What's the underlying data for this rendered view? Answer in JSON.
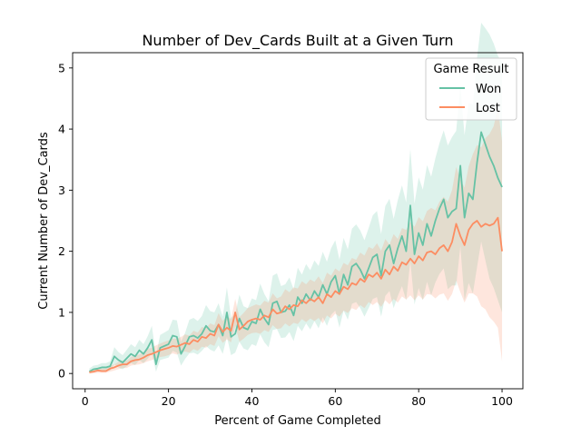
{
  "chart_data": {
    "type": "line",
    "title": "Number of Dev_Cards Built at a Given Turn",
    "xlabel": "Percent of Game Completed",
    "ylabel": "Current Number of Dev_Cards",
    "xlim": [
      -3,
      105
    ],
    "ylim": [
      -0.25,
      5.25
    ],
    "xticks": [
      0,
      20,
      40,
      60,
      80,
      100
    ],
    "yticks": [
      0,
      1,
      2,
      3,
      4,
      5
    ],
    "legend": {
      "title": "Game Result",
      "position": "top-right"
    },
    "x": [
      1,
      2,
      3,
      4,
      5,
      6,
      7,
      8,
      9,
      10,
      11,
      12,
      13,
      14,
      15,
      16,
      17,
      18,
      19,
      20,
      21,
      22,
      23,
      24,
      25,
      26,
      27,
      28,
      29,
      30,
      31,
      32,
      33,
      34,
      35,
      36,
      37,
      38,
      39,
      40,
      41,
      42,
      43,
      44,
      45,
      46,
      47,
      48,
      49,
      50,
      51,
      52,
      53,
      54,
      55,
      56,
      57,
      58,
      59,
      60,
      61,
      62,
      63,
      64,
      65,
      66,
      67,
      68,
      69,
      70,
      71,
      72,
      73,
      74,
      75,
      76,
      77,
      78,
      79,
      80,
      81,
      82,
      83,
      84,
      85,
      86,
      87,
      88,
      89,
      90,
      91,
      92,
      93,
      94,
      95,
      96,
      97,
      98,
      99,
      100
    ],
    "series": [
      {
        "name": "Won",
        "color": "#66c2a5",
        "values": [
          0.03,
          0.07,
          0.08,
          0.1,
          0.1,
          0.12,
          0.28,
          0.22,
          0.18,
          0.25,
          0.32,
          0.28,
          0.38,
          0.32,
          0.42,
          0.55,
          0.15,
          0.42,
          0.45,
          0.48,
          0.62,
          0.6,
          0.32,
          0.45,
          0.6,
          0.62,
          0.58,
          0.65,
          0.78,
          0.7,
          0.68,
          0.8,
          0.62,
          1.0,
          0.6,
          0.65,
          0.9,
          0.75,
          0.72,
          0.85,
          0.82,
          1.05,
          0.9,
          0.8,
          1.15,
          1.18,
          1.0,
          1.02,
          1.12,
          0.95,
          1.25,
          1.15,
          1.3,
          1.2,
          1.35,
          1.25,
          1.45,
          1.3,
          1.5,
          1.6,
          1.3,
          1.62,
          1.45,
          1.75,
          1.8,
          1.7,
          1.55,
          1.72,
          1.9,
          1.95,
          1.6,
          2.0,
          2.1,
          1.8,
          2.05,
          2.25,
          2.0,
          2.75,
          1.95,
          2.3,
          2.1,
          2.45,
          2.25,
          2.5,
          2.7,
          2.85,
          2.55,
          2.65,
          2.7,
          3.4,
          2.55,
          2.95,
          2.85,
          3.45,
          3.95,
          3.75,
          3.55,
          3.4,
          3.2,
          3.05
        ],
        "ci_lower": [
          0.0,
          0.02,
          0.03,
          0.04,
          0.04,
          0.05,
          0.15,
          0.1,
          0.07,
          0.12,
          0.17,
          0.14,
          0.22,
          0.17,
          0.24,
          0.33,
          0.03,
          0.22,
          0.24,
          0.26,
          0.37,
          0.34,
          0.13,
          0.24,
          0.33,
          0.34,
          0.31,
          0.37,
          0.45,
          0.39,
          0.36,
          0.46,
          0.32,
          0.6,
          0.3,
          0.34,
          0.52,
          0.41,
          0.38,
          0.48,
          0.45,
          0.64,
          0.51,
          0.43,
          0.71,
          0.73,
          0.58,
          0.59,
          0.68,
          0.53,
          0.78,
          0.69,
          0.82,
          0.72,
          0.86,
          0.74,
          0.92,
          0.78,
          0.96,
          1.03,
          0.75,
          1.03,
          0.88,
          1.14,
          1.17,
          1.07,
          0.93,
          1.07,
          1.22,
          1.25,
          0.93,
          1.27,
          1.35,
          1.07,
          1.27,
          1.43,
          1.2,
          1.84,
          1.13,
          1.4,
          1.2,
          1.5,
          1.28,
          1.49,
          1.63,
          1.72,
          1.38,
          1.44,
          1.44,
          2.08,
          1.2,
          1.48,
          1.31,
          1.74,
          2.16,
          1.85,
          1.55,
          1.4,
          1.2,
          1.0
        ],
        "ci_upper": [
          0.08,
          0.13,
          0.14,
          0.17,
          0.17,
          0.2,
          0.43,
          0.35,
          0.3,
          0.39,
          0.48,
          0.43,
          0.55,
          0.48,
          0.61,
          0.78,
          0.3,
          0.63,
          0.67,
          0.71,
          0.88,
          0.87,
          0.52,
          0.67,
          0.88,
          0.91,
          0.86,
          0.94,
          1.12,
          1.02,
          1.0,
          1.15,
          0.93,
          1.41,
          0.91,
          0.97,
          1.29,
          1.1,
          1.07,
          1.23,
          1.2,
          1.47,
          1.3,
          1.18,
          1.6,
          1.64,
          1.43,
          1.46,
          1.57,
          1.38,
          1.73,
          1.62,
          1.79,
          1.69,
          1.85,
          1.76,
          1.99,
          1.83,
          2.05,
          2.18,
          1.86,
          2.22,
          2.03,
          2.37,
          2.44,
          2.34,
          2.18,
          2.38,
          2.59,
          2.66,
          2.28,
          2.74,
          2.86,
          2.53,
          2.84,
          3.08,
          2.8,
          3.67,
          2.78,
          3.21,
          3.01,
          3.41,
          3.22,
          3.52,
          3.77,
          3.98,
          3.73,
          3.87,
          3.97,
          4.72,
          3.9,
          4.43,
          4.4,
          5.16,
          5.74,
          5.65,
          5.55,
          5.4,
          5.2,
          5.1
        ]
      },
      {
        "name": "Lost",
        "color": "#fc8d62",
        "values": [
          0.02,
          0.03,
          0.05,
          0.04,
          0.04,
          0.08,
          0.1,
          0.13,
          0.15,
          0.15,
          0.2,
          0.22,
          0.23,
          0.26,
          0.3,
          0.32,
          0.35,
          0.38,
          0.4,
          0.42,
          0.45,
          0.44,
          0.47,
          0.5,
          0.48,
          0.55,
          0.52,
          0.6,
          0.58,
          0.65,
          0.62,
          0.8,
          0.68,
          0.75,
          0.7,
          1.0,
          0.72,
          0.78,
          0.85,
          0.88,
          0.9,
          0.88,
          0.95,
          0.92,
          1.05,
          0.98,
          1.0,
          1.1,
          1.05,
          1.12,
          1.1,
          1.2,
          1.15,
          1.22,
          1.18,
          1.25,
          1.15,
          1.3,
          1.25,
          1.35,
          1.3,
          1.42,
          1.38,
          1.48,
          1.45,
          1.55,
          1.5,
          1.62,
          1.58,
          1.65,
          1.55,
          1.7,
          1.62,
          1.75,
          1.68,
          1.82,
          1.78,
          1.88,
          1.8,
          1.92,
          1.85,
          1.98,
          2.0,
          1.95,
          2.05,
          2.1,
          2.0,
          2.15,
          2.45,
          2.25,
          2.1,
          2.35,
          2.45,
          2.5,
          2.4,
          2.45,
          2.42,
          2.45,
          2.55,
          2.0
        ],
        "ci_lower": [
          0.0,
          0.0,
          0.01,
          0.01,
          0.01,
          0.03,
          0.05,
          0.07,
          0.09,
          0.09,
          0.13,
          0.14,
          0.15,
          0.17,
          0.2,
          0.22,
          0.24,
          0.27,
          0.28,
          0.3,
          0.33,
          0.31,
          0.34,
          0.36,
          0.34,
          0.4,
          0.37,
          0.44,
          0.42,
          0.48,
          0.45,
          0.61,
          0.5,
          0.56,
          0.51,
          0.78,
          0.52,
          0.57,
          0.63,
          0.66,
          0.67,
          0.65,
          0.71,
          0.68,
          0.79,
          0.73,
          0.74,
          0.82,
          0.77,
          0.83,
          0.81,
          0.89,
          0.84,
          0.9,
          0.86,
          0.91,
          0.82,
          0.95,
          0.9,
          0.98,
          0.93,
          1.03,
          0.99,
          1.07,
          1.04,
          1.12,
          1.07,
          1.17,
          1.12,
          1.17,
          1.09,
          1.2,
          1.13,
          1.22,
          1.16,
          1.26,
          1.21,
          1.28,
          1.2,
          1.28,
          1.21,
          1.3,
          1.29,
          1.23,
          1.29,
          1.31,
          1.19,
          1.3,
          1.52,
          1.33,
          1.16,
          1.31,
          1.31,
          1.26,
          1.1,
          1.05,
          0.92,
          0.85,
          0.75,
          0.2
        ],
        "ci_upper": [
          0.04,
          0.06,
          0.09,
          0.08,
          0.08,
          0.13,
          0.15,
          0.19,
          0.21,
          0.21,
          0.27,
          0.3,
          0.31,
          0.35,
          0.4,
          0.42,
          0.46,
          0.49,
          0.52,
          0.54,
          0.57,
          0.57,
          0.6,
          0.64,
          0.62,
          0.7,
          0.67,
          0.76,
          0.74,
          0.82,
          0.79,
          0.99,
          0.86,
          0.94,
          0.89,
          1.22,
          0.92,
          0.99,
          1.07,
          1.1,
          1.13,
          1.11,
          1.19,
          1.16,
          1.31,
          1.23,
          1.26,
          1.38,
          1.33,
          1.41,
          1.39,
          1.51,
          1.46,
          1.54,
          1.5,
          1.59,
          1.48,
          1.65,
          1.6,
          1.72,
          1.67,
          1.81,
          1.77,
          1.89,
          1.86,
          1.98,
          1.93,
          2.07,
          2.04,
          2.13,
          2.01,
          2.2,
          2.11,
          2.28,
          2.2,
          2.38,
          2.35,
          2.48,
          2.4,
          2.56,
          2.49,
          2.66,
          2.71,
          2.67,
          2.81,
          2.89,
          2.81,
          3.0,
          3.38,
          3.17,
          3.04,
          3.39,
          3.59,
          3.74,
          3.7,
          3.85,
          3.92,
          4.05,
          4.35,
          3.8
        ]
      }
    ]
  }
}
